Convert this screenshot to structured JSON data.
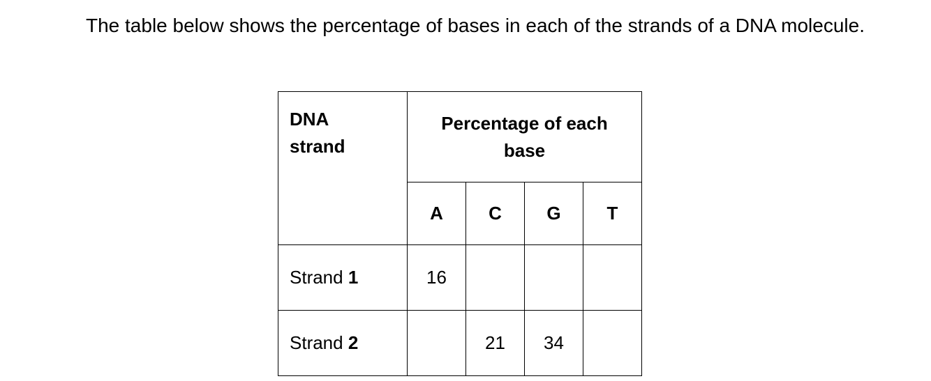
{
  "intro": "The table below shows the percentage of bases in each of the strands of a DNA molecule.",
  "table": {
    "header_strand_line1": "DNA",
    "header_strand_line2": "strand",
    "header_pct_line1": "Percentage of each",
    "header_pct_line2": "base",
    "bases": [
      "A",
      "C",
      "G",
      "T"
    ],
    "rows": [
      {
        "label": "Strand ",
        "num": "1",
        "values": [
          "16",
          "",
          "",
          ""
        ]
      },
      {
        "label": "Strand ",
        "num": "2",
        "values": [
          "",
          "21",
          "34",
          ""
        ]
      }
    ]
  }
}
